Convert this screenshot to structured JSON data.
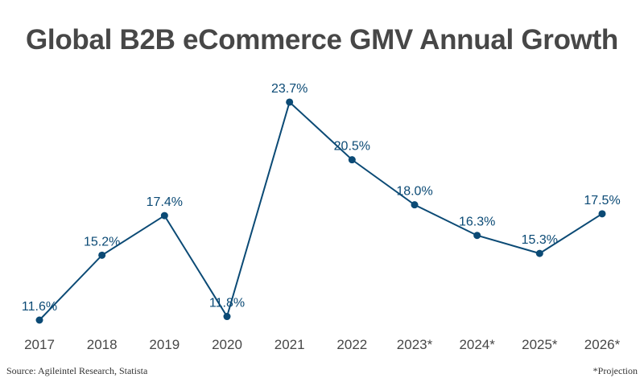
{
  "chart_data": {
    "type": "line",
    "title": "Global B2B eCommerce GMV Annual Growth",
    "categories": [
      "2017",
      "2018",
      "2019",
      "2020",
      "2021",
      "2022",
      "2023*",
      "2024*",
      "2025*",
      "2026*"
    ],
    "values": [
      11.6,
      15.2,
      17.4,
      11.8,
      23.7,
      20.5,
      18.0,
      16.3,
      15.3,
      17.5
    ],
    "data_labels": [
      "11.6%",
      "15.2%",
      "17.4%",
      "11.8%",
      "23.7%",
      "20.5%",
      "18.0%",
      "16.3%",
      "15.3%",
      "17.5%"
    ],
    "xlabel": "",
    "ylabel": "",
    "ylim": [
      10,
      25
    ],
    "grid": false,
    "line_color": "#0b4a75",
    "title_color": "#474747"
  },
  "footer": {
    "source": "Source: Agileintel Research, Statista",
    "note": "*Projection"
  }
}
